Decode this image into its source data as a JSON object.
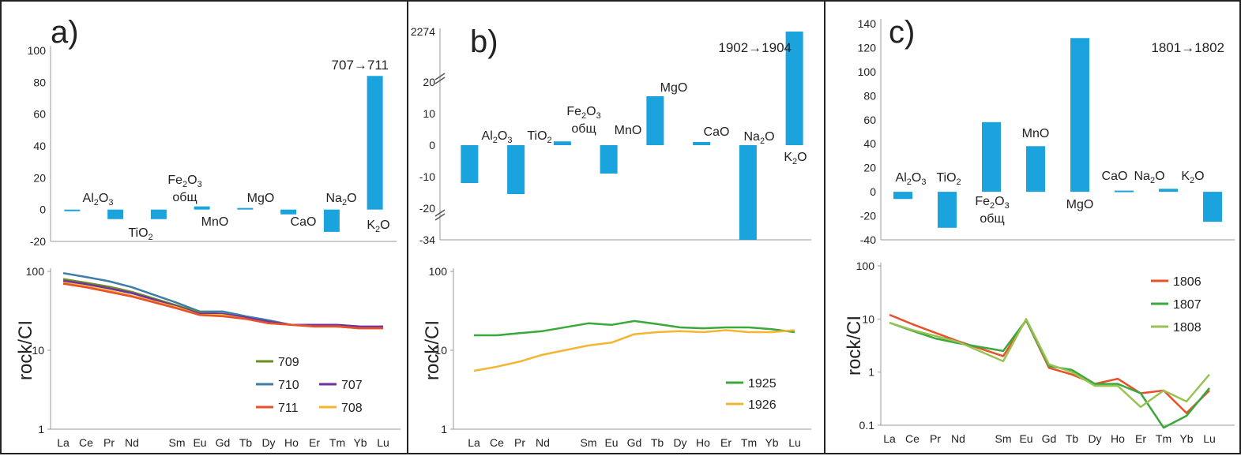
{
  "chart_data": [
    {
      "panel": "a",
      "type": "bar",
      "panel_label": "a)",
      "annotation": "707→711",
      "categories": [
        "Al2O3",
        "TiO2",
        "Fe2O3 общ",
        "MnO",
        "MgO",
        "CaO",
        "Na2O",
        "K2O"
      ],
      "category_labels": [
        {
          "main": "Al",
          "sub": "2",
          "rest": "O",
          "sub2": "3",
          "extra": ""
        },
        {
          "main": "TiO",
          "sub": "2",
          "rest": "",
          "sub2": "",
          "extra": ""
        },
        {
          "main": "Fe",
          "sub": "2",
          "rest": "O",
          "sub2": "3",
          "extra": "общ"
        },
        {
          "main": "MnO",
          "sub": "",
          "rest": "",
          "sub2": "",
          "extra": ""
        },
        {
          "main": "MgO",
          "sub": "",
          "rest": "",
          "sub2": "",
          "extra": ""
        },
        {
          "main": "CaO",
          "sub": "",
          "rest": "",
          "sub2": "",
          "extra": ""
        },
        {
          "main": "Na",
          "sub": "2",
          "rest": "O",
          "sub2": "",
          "extra": ""
        },
        {
          "main": "K",
          "sub": "2",
          "rest": "O",
          "sub2": "",
          "extra": ""
        }
      ],
      "values": [
        -1,
        -6,
        -6,
        2,
        1,
        -3,
        -14,
        84
      ],
      "ylim": [
        -20,
        100
      ],
      "yticks": [
        "-20",
        "0",
        "20",
        "40",
        "60",
        "80",
        "100"
      ],
      "color": "#1ba3dd"
    },
    {
      "panel": "a",
      "type": "line",
      "log_scale": true,
      "ylabel": "rock/CI",
      "ylim": [
        1,
        100
      ],
      "yticks": [
        "1",
        "10",
        "100"
      ],
      "x": [
        "La",
        "Ce",
        "Pr",
        "Nd",
        "Sm",
        "Eu",
        "Gd",
        "Tb",
        "Dy",
        "Ho",
        "Er",
        "Tm",
        "Yb",
        "Lu"
      ],
      "legend": [
        [
          {
            "name": "709",
            "color": "#6b8e23"
          }
        ],
        [
          {
            "name": "710",
            "color": "#3e7ca8"
          },
          {
            "name": "707",
            "color": "#7030a0"
          }
        ],
        [
          {
            "name": "711",
            "color": "#e8502a"
          },
          {
            "name": "708",
            "color": "#f5b531"
          }
        ]
      ],
      "series": [
        {
          "name": "710",
          "color": "#3e7ca8",
          "values": [
            95,
            85,
            75,
            63,
            40,
            31,
            31,
            27,
            24,
            21,
            21,
            20,
            19,
            20
          ]
        },
        {
          "name": "709",
          "color": "#6b8e23",
          "values": [
            80,
            72,
            64,
            55,
            37,
            30,
            29,
            26,
            23,
            21,
            21,
            20,
            19,
            20
          ]
        },
        {
          "name": "707",
          "color": "#7030a0",
          "values": [
            76,
            69,
            61,
            53,
            36,
            29,
            29,
            26,
            23,
            21,
            21,
            21,
            20,
            20
          ]
        },
        {
          "name": "708",
          "color": "#f5b531",
          "values": [
            72,
            65,
            57,
            49,
            35,
            28,
            28,
            25,
            22,
            21,
            20,
            20,
            19,
            19
          ]
        },
        {
          "name": "711",
          "color": "#e8502a",
          "values": [
            70,
            63,
            55,
            48,
            34,
            28,
            27,
            25,
            22,
            21,
            20,
            20,
            19,
            19
          ]
        }
      ]
    },
    {
      "panel": "b",
      "type": "bar",
      "panel_label": "b)",
      "annotation": "1902→1904",
      "categories": [
        "Al2O3",
        "TiO2",
        "Fe2O3 общ",
        "MnO",
        "MgO",
        "CaO",
        "Na2O",
        "K2O"
      ],
      "category_labels": [
        {
          "main": "Al",
          "sub": "2",
          "rest": "O",
          "sub2": "3",
          "extra": ""
        },
        {
          "main": "TiO",
          "sub": "2",
          "rest": "",
          "sub2": "",
          "extra": ""
        },
        {
          "main": "Fe",
          "sub": "2",
          "rest": "O",
          "sub2": "3",
          "extra": "общ"
        },
        {
          "main": "MnO",
          "sub": "",
          "rest": "",
          "sub2": "",
          "extra": ""
        },
        {
          "main": "MgO",
          "sub": "",
          "rest": "",
          "sub2": "",
          "extra": ""
        },
        {
          "main": "CaO",
          "sub": "",
          "rest": "",
          "sub2": "",
          "extra": ""
        },
        {
          "main": "Na",
          "sub": "2",
          "rest": "O",
          "sub2": "",
          "extra": ""
        },
        {
          "main": "K",
          "sub": "2",
          "rest": "O",
          "sub2": "",
          "extra": ""
        }
      ],
      "values": [
        -12,
        -15.5,
        1.2,
        -9,
        15.5,
        1,
        -34,
        2274
      ],
      "axis_breaks": true,
      "ylim": [
        -20,
        20
      ],
      "yticks": [
        "-34",
        "-20",
        "-10",
        "0",
        "10",
        "20",
        "2274"
      ],
      "color": "#1ba3dd"
    },
    {
      "panel": "b",
      "type": "line",
      "log_scale": true,
      "ylabel": "rock/CI",
      "ylim": [
        1,
        100
      ],
      "yticks": [
        "1",
        "10",
        "100"
      ],
      "x": [
        "La",
        "Ce",
        "Pr",
        "Nd",
        "Sm",
        "Eu",
        "Gd",
        "Tb",
        "Dy",
        "Ho",
        "Er",
        "Tm",
        "Yb",
        "Lu"
      ],
      "legend": [
        [
          {
            "name": "1925",
            "color": "#3aa83a"
          }
        ],
        [
          {
            "name": "1926",
            "color": "#f5b531"
          }
        ]
      ],
      "series": [
        {
          "name": "1925",
          "color": "#3aa83a",
          "values": [
            15.5,
            15.5,
            16.5,
            17.5,
            22,
            21,
            23.5,
            21.5,
            19.5,
            19,
            19.5,
            19.5,
            18.5,
            17
          ]
        },
        {
          "name": "1926",
          "color": "#f5b531",
          "values": [
            5.5,
            6.2,
            7.2,
            8.8,
            11.5,
            12.5,
            16,
            17,
            17.5,
            17,
            18,
            17,
            17,
            18
          ]
        }
      ]
    },
    {
      "panel": "c",
      "type": "bar",
      "panel_label": "c)",
      "annotation": "1801→1802",
      "categories": [
        "Al2O3",
        "TiO2",
        "Fe2O3 общ",
        "MnO",
        "MgO",
        "CaO",
        "Na2O",
        "K2O"
      ],
      "category_labels": [
        {
          "main": "Al",
          "sub": "2",
          "rest": "O",
          "sub2": "3",
          "extra": ""
        },
        {
          "main": "TiO",
          "sub": "2",
          "rest": "",
          "sub2": "",
          "extra": ""
        },
        {
          "main": "Fe",
          "sub": "2",
          "rest": "O",
          "sub2": "3",
          "extra": "общ"
        },
        {
          "main": "MnO",
          "sub": "",
          "rest": "",
          "sub2": "",
          "extra": ""
        },
        {
          "main": "MgO",
          "sub": "",
          "rest": "",
          "sub2": "",
          "extra": ""
        },
        {
          "main": "CaO",
          "sub": "",
          "rest": "",
          "sub2": "",
          "extra": ""
        },
        {
          "main": "Na",
          "sub": "2",
          "rest": "O",
          "sub2": "",
          "extra": ""
        },
        {
          "main": "K",
          "sub": "2",
          "rest": "O",
          "sub2": "",
          "extra": ""
        }
      ],
      "values": [
        -6,
        -30,
        58,
        38,
        128,
        1,
        2.5,
        -25
      ],
      "ylim": [
        -40,
        140
      ],
      "yticks": [
        "-40",
        "-20",
        "0",
        "20",
        "40",
        "60",
        "80",
        "100",
        "120",
        "140"
      ],
      "color": "#1ba3dd"
    },
    {
      "panel": "c",
      "type": "line",
      "log_scale": true,
      "ylabel": "rock/CI",
      "ylim": [
        0.1,
        100
      ],
      "yticks": [
        "0.1",
        "1",
        "10",
        "100"
      ],
      "x": [
        "La",
        "Ce",
        "Pr",
        "Nd",
        "Sm",
        "Eu",
        "Gd",
        "Tb",
        "Dy",
        "Ho",
        "Er",
        "Tm",
        "Yb",
        "Lu"
      ],
      "legend": [
        [
          {
            "name": "1806",
            "color": "#e8502a"
          }
        ],
        [
          {
            "name": "1807",
            "color": "#3aa83a"
          }
        ],
        [
          {
            "name": "1808",
            "color": "#99c255"
          }
        ]
      ],
      "series": [
        {
          "name": "1806",
          "color": "#e8502a",
          "values": [
            12,
            8,
            5.5,
            3.8,
            2,
            9.5,
            1.2,
            0.9,
            0.6,
            0.75,
            0.4,
            0.45,
            0.17,
            0.45
          ]
        },
        {
          "name": "1807",
          "color": "#3aa83a",
          "values": [
            8.5,
            6,
            4.3,
            3.5,
            2.5,
            9.5,
            1.3,
            1.1,
            0.6,
            0.6,
            0.4,
            0.09,
            0.15,
            0.5
          ]
        },
        {
          "name": "1808",
          "color": "#99c255",
          "values": [
            8.5,
            6.2,
            4.8,
            3.7,
            1.6,
            10,
            1.4,
            1,
            0.55,
            0.55,
            0.22,
            0.45,
            0.28,
            0.9
          ]
        }
      ]
    }
  ]
}
